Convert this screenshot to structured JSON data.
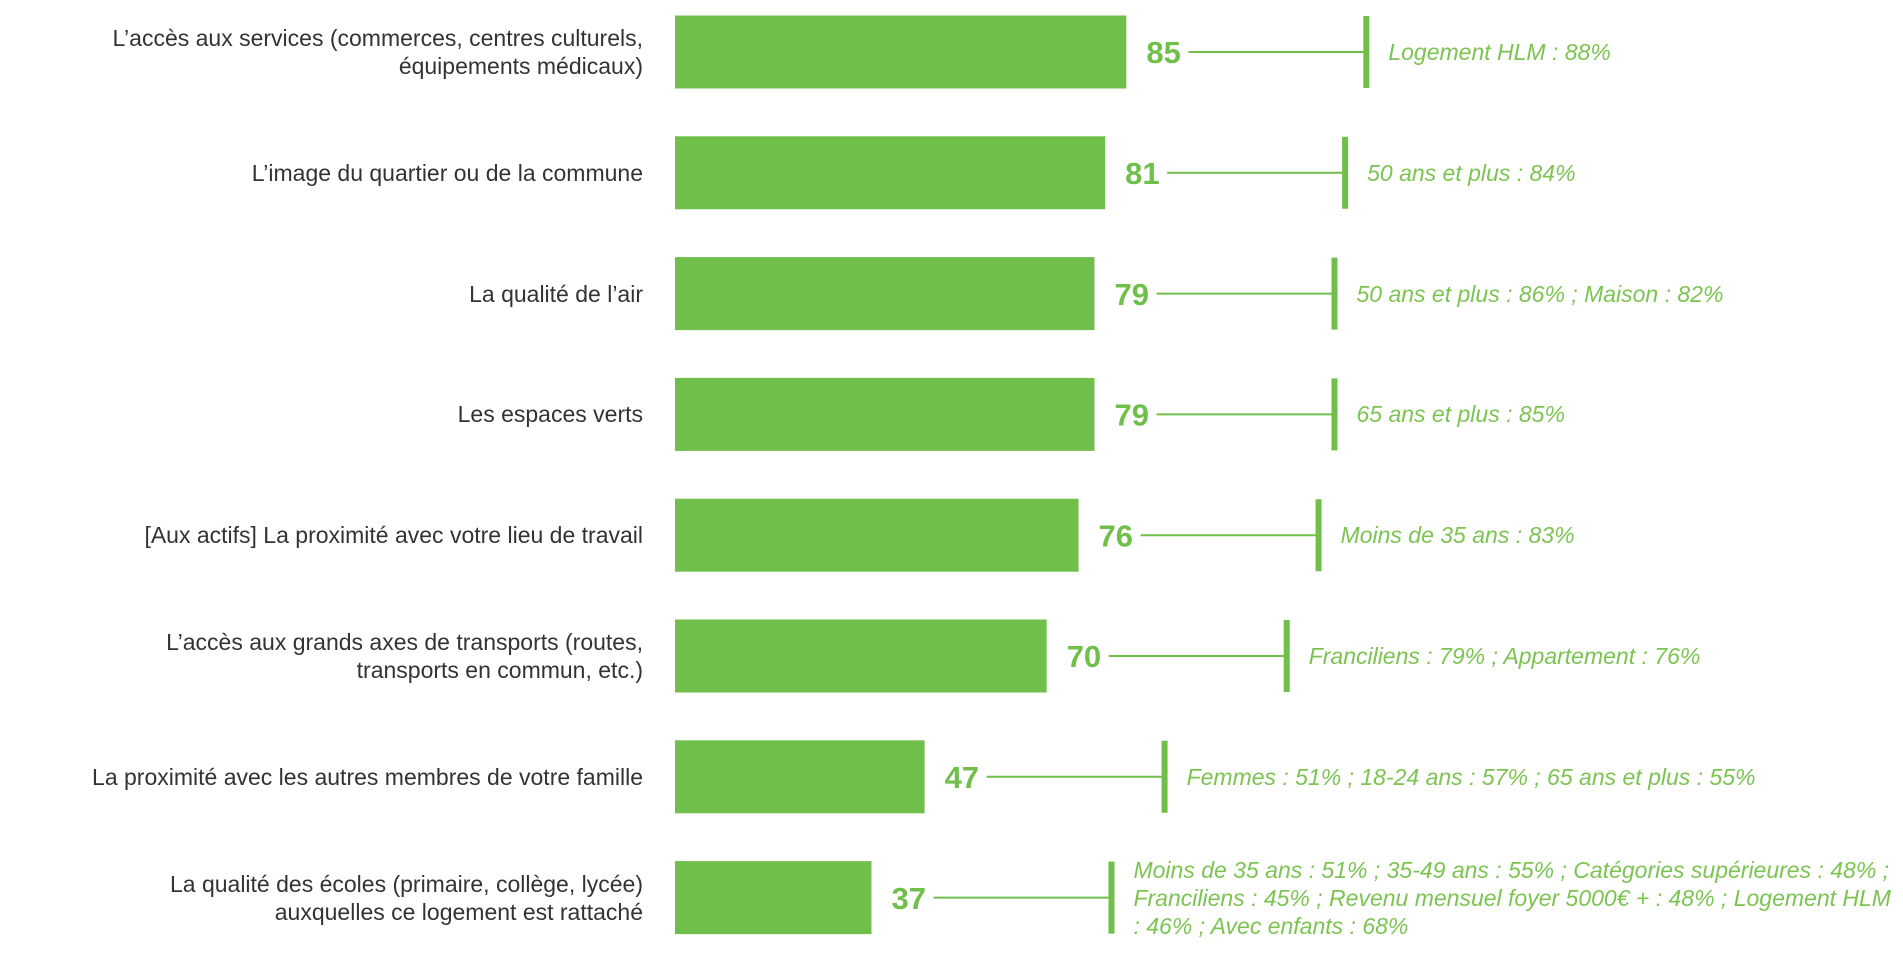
{
  "chart_data": {
    "type": "bar",
    "orientation": "horizontal",
    "color": "#70bf4a",
    "categories": [
      "L’accès aux services (commerces, centres culturels, équipements médicaux)",
      "L’image du quartier ou de la commune",
      "La qualité de l’air",
      "Les espaces verts",
      "[Aux actifs] La proximité avec votre lieu de travail",
      "L’accès aux grands axes de transports (routes, transports en commun, etc.)",
      "La proximité avec les autres membres de votre famille",
      "La qualité des écoles (primaire, collège, lycée) auxquelles ce logement est rattaché"
    ],
    "values": [
      85,
      81,
      79,
      79,
      76,
      70,
      47,
      37
    ],
    "annotations": [
      "Logement HLM : 88%",
      "50 ans et plus : 84%",
      "50 ans et plus : 86% ; Maison : 82%",
      "65 ans et plus : 85%",
      "Moins de 35 ans : 83%",
      "Franciliens : 79% ; Appartement : 76%",
      "Femmes : 51% ; 18-24 ans : 57% ; 65 ans et plus : 55%",
      "Moins de 35 ans : 51% ; 35-49 ans : 55% ; Catégories supérieures : 48% ; Franciliens : 45% ; Revenu mensuel foyer 5000€ + : 48% ; Logement HLM : 46% ; Avec enfants : 68%"
    ]
  }
}
